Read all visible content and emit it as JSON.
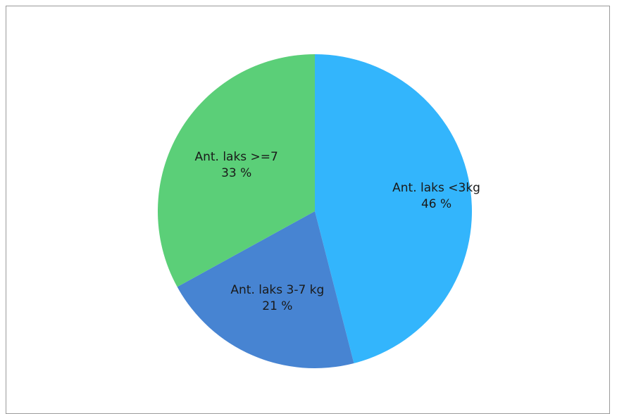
{
  "chart_data": {
    "type": "pie",
    "title": "",
    "slices": [
      {
        "label": "Ant. laks <3kg",
        "value": 46,
        "percent_text": "46 %",
        "color": "#33b5fc"
      },
      {
        "label": "Ant. laks 3-7 kg",
        "value": 21,
        "percent_text": "21 %",
        "color": "#4784d2"
      },
      {
        "label": "Ant. laks >=7",
        "value": 33,
        "percent_text": "33 %",
        "color": "#5bcf78"
      }
    ],
    "start_angle": "12 o'clock",
    "direction": "clockwise",
    "legend": "none",
    "data_labels": "inside"
  }
}
